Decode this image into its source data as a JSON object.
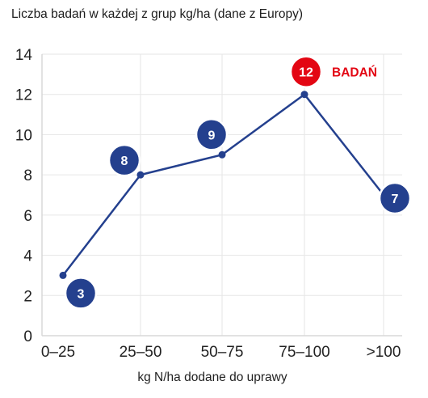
{
  "chart_data": {
    "type": "line",
    "title": "Liczba badań w każdej z grup kg/ha (dane z Europy)",
    "xlabel": "kg N/ha dodane do uprawy",
    "ylabel": "",
    "categories": [
      "0–25",
      "25–50",
      "50–75",
      "75–100",
      ">100"
    ],
    "values": [
      3,
      8,
      9,
      12,
      7
    ],
    "badges": [
      "3",
      "8",
      "9",
      "12",
      "7"
    ],
    "highlight_index": 3,
    "highlight_label": "BADAŃ",
    "ylim": [
      0,
      14
    ],
    "yticks": [
      "0",
      "2",
      "4",
      "6",
      "8",
      "10",
      "12",
      "14"
    ],
    "grid": true,
    "colors": {
      "line": "#24408e",
      "badge": "#24408e",
      "highlight": "#e30613",
      "grid": "#e6e6e6",
      "axis": "#d8d8d8"
    }
  }
}
